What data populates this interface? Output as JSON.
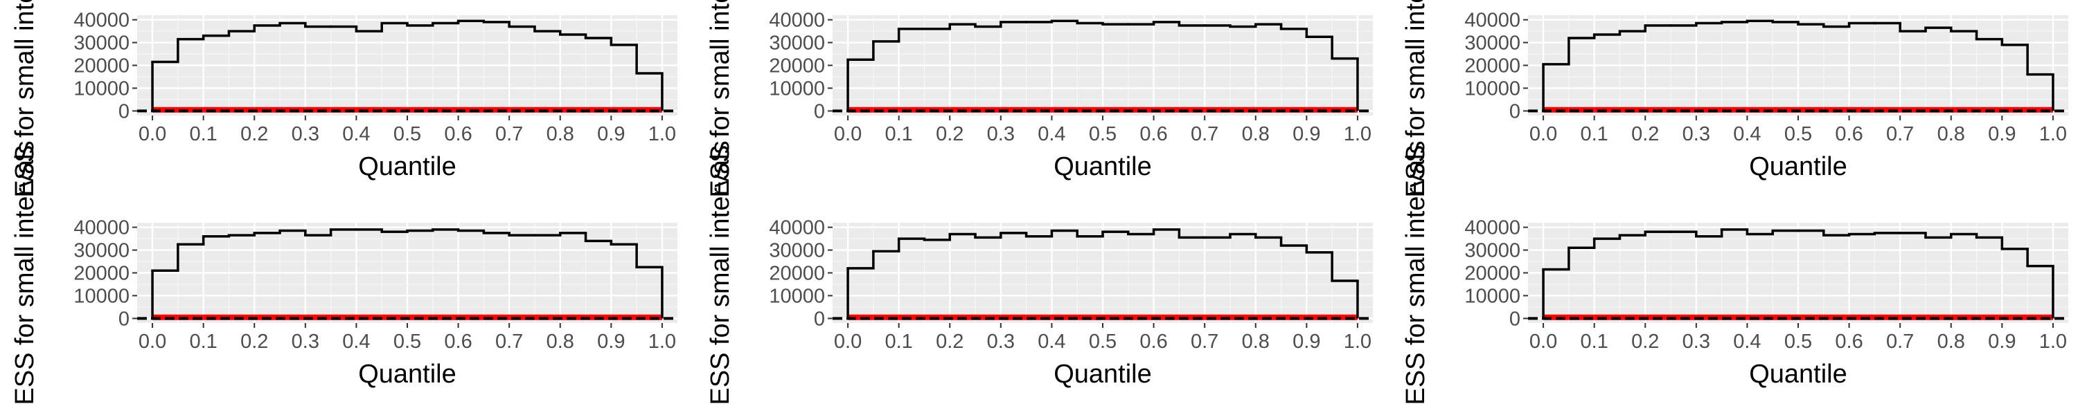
{
  "chart_data": [
    {
      "type": "histogram",
      "xlabel": "Quantile",
      "ylabel": "ESS for small intervals",
      "xlim": [
        -0.03,
        1.03
      ],
      "ylim": [
        -2000,
        42000
      ],
      "xticks": [
        "0.0",
        "0.1",
        "0.2",
        "0.3",
        "0.4",
        "0.5",
        "0.6",
        "0.7",
        "0.8",
        "0.9",
        "1.0"
      ],
      "yticks": [
        "0",
        "10000",
        "20000",
        "30000",
        "40000"
      ],
      "bins": [
        0,
        0.05,
        0.1,
        0.15,
        0.2,
        0.25,
        0.3,
        0.35,
        0.4,
        0.45,
        0.5,
        0.55,
        0.6,
        0.65,
        0.7,
        0.75,
        0.8,
        0.85,
        0.9,
        0.95,
        1.0
      ],
      "series": [
        {
          "values": [
            21500,
            31500,
            33000,
            35000,
            37500,
            38500,
            37000,
            37000,
            35000,
            38500,
            37500,
            38500,
            39500,
            39000,
            37000,
            35000,
            33500,
            32000,
            29000,
            16500
          ],
          "color": "#000000"
        },
        {
          "values": [
            500,
            500,
            500,
            500,
            500,
            500,
            500,
            500,
            500,
            500,
            500,
            500,
            500,
            500,
            500,
            500,
            500,
            500,
            500,
            500
          ],
          "color": "#ff0000"
        }
      ],
      "grid": true
    },
    {
      "type": "histogram",
      "xlabel": "Quantile",
      "ylabel": "ESS for small intervals",
      "xlim": [
        -0.03,
        1.03
      ],
      "ylim": [
        -2000,
        42000
      ],
      "xticks": [
        "0.0",
        "0.1",
        "0.2",
        "0.3",
        "0.4",
        "0.5",
        "0.6",
        "0.7",
        "0.8",
        "0.9",
        "1.0"
      ],
      "yticks": [
        "0",
        "10000",
        "20000",
        "30000",
        "40000"
      ],
      "bins": [
        0,
        0.05,
        0.1,
        0.15,
        0.2,
        0.25,
        0.3,
        0.35,
        0.4,
        0.45,
        0.5,
        0.55,
        0.6,
        0.65,
        0.7,
        0.75,
        0.8,
        0.85,
        0.9,
        0.95,
        1.0
      ],
      "series": [
        {
          "values": [
            22500,
            30500,
            36000,
            36000,
            38000,
            37000,
            39000,
            39000,
            39500,
            38500,
            38000,
            38000,
            39000,
            37500,
            37500,
            37000,
            38000,
            36000,
            32500,
            23000
          ],
          "color": "#000000"
        },
        {
          "values": [
            500,
            500,
            500,
            500,
            500,
            500,
            500,
            500,
            500,
            500,
            500,
            500,
            500,
            500,
            500,
            500,
            500,
            500,
            500,
            500
          ],
          "color": "#ff0000"
        }
      ],
      "grid": true
    },
    {
      "type": "histogram",
      "xlabel": "Quantile",
      "ylabel": "ESS for small intervals",
      "xlim": [
        -0.03,
        1.03
      ],
      "ylim": [
        -2000,
        42000
      ],
      "xticks": [
        "0.0",
        "0.1",
        "0.2",
        "0.3",
        "0.4",
        "0.5",
        "0.6",
        "0.7",
        "0.8",
        "0.9",
        "1.0"
      ],
      "yticks": [
        "0",
        "10000",
        "20000",
        "30000",
        "40000"
      ],
      "bins": [
        0,
        0.05,
        0.1,
        0.15,
        0.2,
        0.25,
        0.3,
        0.35,
        0.4,
        0.45,
        0.5,
        0.55,
        0.6,
        0.65,
        0.7,
        0.75,
        0.8,
        0.85,
        0.9,
        0.95,
        1.0
      ],
      "series": [
        {
          "values": [
            20500,
            32000,
            33500,
            35000,
            37500,
            37500,
            38500,
            39000,
            39500,
            39000,
            38000,
            37000,
            38500,
            38500,
            35000,
            36500,
            35000,
            31500,
            29000,
            16000
          ],
          "color": "#000000"
        },
        {
          "values": [
            500,
            500,
            500,
            500,
            500,
            500,
            500,
            500,
            500,
            500,
            500,
            500,
            500,
            500,
            500,
            500,
            500,
            500,
            500,
            500
          ],
          "color": "#ff0000"
        }
      ],
      "grid": true
    },
    {
      "type": "histogram",
      "xlabel": "Quantile",
      "ylabel": "ESS for small intervals",
      "xlim": [
        -0.03,
        1.03
      ],
      "ylim": [
        -2000,
        42000
      ],
      "xticks": [
        "0.0",
        "0.1",
        "0.2",
        "0.3",
        "0.4",
        "0.5",
        "0.6",
        "0.7",
        "0.8",
        "0.9",
        "1.0"
      ],
      "yticks": [
        "0",
        "10000",
        "20000",
        "30000",
        "40000"
      ],
      "bins": [
        0,
        0.05,
        0.1,
        0.15,
        0.2,
        0.25,
        0.3,
        0.35,
        0.4,
        0.45,
        0.5,
        0.55,
        0.6,
        0.65,
        0.7,
        0.75,
        0.8,
        0.85,
        0.9,
        0.95,
        1.0
      ],
      "series": [
        {
          "values": [
            21000,
            32500,
            36000,
            36500,
            37500,
            38500,
            36500,
            39000,
            39000,
            38000,
            38500,
            39000,
            38500,
            37500,
            36500,
            36500,
            37500,
            34000,
            32500,
            22500
          ],
          "color": "#000000"
        },
        {
          "values": [
            500,
            500,
            500,
            500,
            500,
            500,
            500,
            500,
            500,
            500,
            500,
            500,
            500,
            500,
            500,
            500,
            500,
            500,
            500,
            500
          ],
          "color": "#ff0000"
        }
      ],
      "grid": true
    },
    {
      "type": "histogram",
      "xlabel": "Quantile",
      "ylabel": "ESS for small intervals",
      "xlim": [
        -0.03,
        1.03
      ],
      "ylim": [
        -2000,
        42000
      ],
      "xticks": [
        "0.0",
        "0.1",
        "0.2",
        "0.3",
        "0.4",
        "0.5",
        "0.6",
        "0.7",
        "0.8",
        "0.9",
        "1.0"
      ],
      "yticks": [
        "0",
        "10000",
        "20000",
        "30000",
        "40000"
      ],
      "bins": [
        0,
        0.05,
        0.1,
        0.15,
        0.2,
        0.25,
        0.3,
        0.35,
        0.4,
        0.45,
        0.5,
        0.55,
        0.6,
        0.65,
        0.7,
        0.75,
        0.8,
        0.85,
        0.9,
        0.95,
        1.0
      ],
      "series": [
        {
          "values": [
            22000,
            29500,
            35000,
            34500,
            37000,
            35500,
            37500,
            36000,
            38500,
            36000,
            38000,
            37000,
            39000,
            35500,
            35500,
            37000,
            35500,
            32000,
            29000,
            16500
          ],
          "color": "#000000"
        },
        {
          "values": [
            500,
            500,
            500,
            500,
            500,
            500,
            500,
            500,
            500,
            500,
            500,
            500,
            500,
            500,
            500,
            500,
            500,
            500,
            500,
            500
          ],
          "color": "#ff0000"
        }
      ],
      "grid": true
    },
    {
      "type": "histogram",
      "xlabel": "Quantile",
      "ylabel": "ESS for small intervals",
      "xlim": [
        -0.03,
        1.03
      ],
      "ylim": [
        -2000,
        42000
      ],
      "xticks": [
        "0.0",
        "0.1",
        "0.2",
        "0.3",
        "0.4",
        "0.5",
        "0.6",
        "0.7",
        "0.8",
        "0.9",
        "1.0"
      ],
      "yticks": [
        "0",
        "10000",
        "20000",
        "30000",
        "40000"
      ],
      "bins": [
        0,
        0.05,
        0.1,
        0.15,
        0.2,
        0.25,
        0.3,
        0.35,
        0.4,
        0.45,
        0.5,
        0.55,
        0.6,
        0.65,
        0.7,
        0.75,
        0.8,
        0.85,
        0.9,
        0.95,
        1.0
      ],
      "series": [
        {
          "values": [
            21500,
            31000,
            35000,
            36500,
            38000,
            38000,
            36000,
            39000,
            37000,
            38500,
            38500,
            36500,
            37000,
            37500,
            37500,
            35500,
            37000,
            35500,
            30500,
            23000
          ],
          "color": "#000000"
        },
        {
          "values": [
            500,
            500,
            500,
            500,
            500,
            500,
            500,
            500,
            500,
            500,
            500,
            500,
            500,
            500,
            500,
            500,
            500,
            500,
            500,
            500
          ],
          "color": "#ff0000"
        }
      ],
      "grid": true
    }
  ]
}
